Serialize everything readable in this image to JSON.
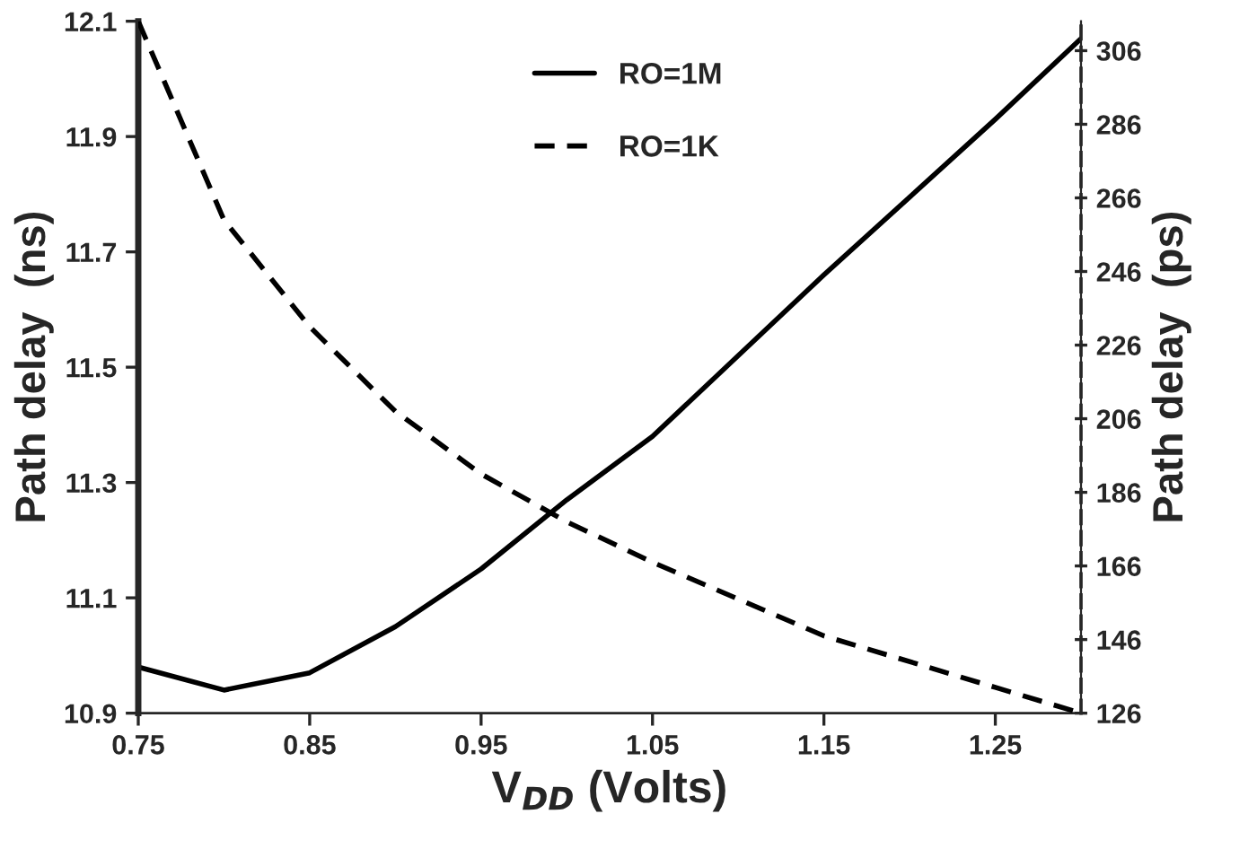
{
  "chart_data": {
    "type": "line",
    "xlabel": "V$_{DD}$ (Volts)",
    "ylabel": "Path delay  (ns)",
    "y2label": "Path delay  (ps)",
    "xlim": [
      0.75,
      1.3
    ],
    "xticks": [
      0.75,
      0.85,
      0.95,
      1.05,
      1.15,
      1.25
    ],
    "ylim": [
      10.9,
      12.1
    ],
    "yticks": [
      10.9,
      11.1,
      11.3,
      11.5,
      11.7,
      11.9,
      12.1
    ],
    "y2lim": [
      126,
      314
    ],
    "y2ticks": [
      126,
      146,
      166,
      186,
      206,
      226,
      246,
      266,
      286,
      306
    ],
    "grid": false,
    "legend": "top",
    "marker": "none",
    "series": [
      {
        "name": "RO=1M",
        "color": "#000000",
        "line_style": "solid",
        "x": [
          0.75,
          0.8,
          0.85,
          0.9,
          0.95,
          1.0,
          1.05,
          1.15,
          1.25,
          1.3
        ],
        "values": [
          10.98,
          10.94,
          10.97,
          11.05,
          11.15,
          11.27,
          11.38,
          11.66,
          11.93,
          12.07
        ]
      },
      {
        "name": "RO=1K",
        "color": "#000000",
        "line_style": "dashed",
        "axis": "y2",
        "x": [
          0.75,
          0.8,
          0.85,
          0.9,
          0.95,
          1.0,
          1.05,
          1.15,
          1.25,
          1.3
        ],
        "values": [
          314,
          260,
          231,
          208,
          191,
          178,
          167,
          147,
          133,
          126
        ]
      }
    ]
  }
}
